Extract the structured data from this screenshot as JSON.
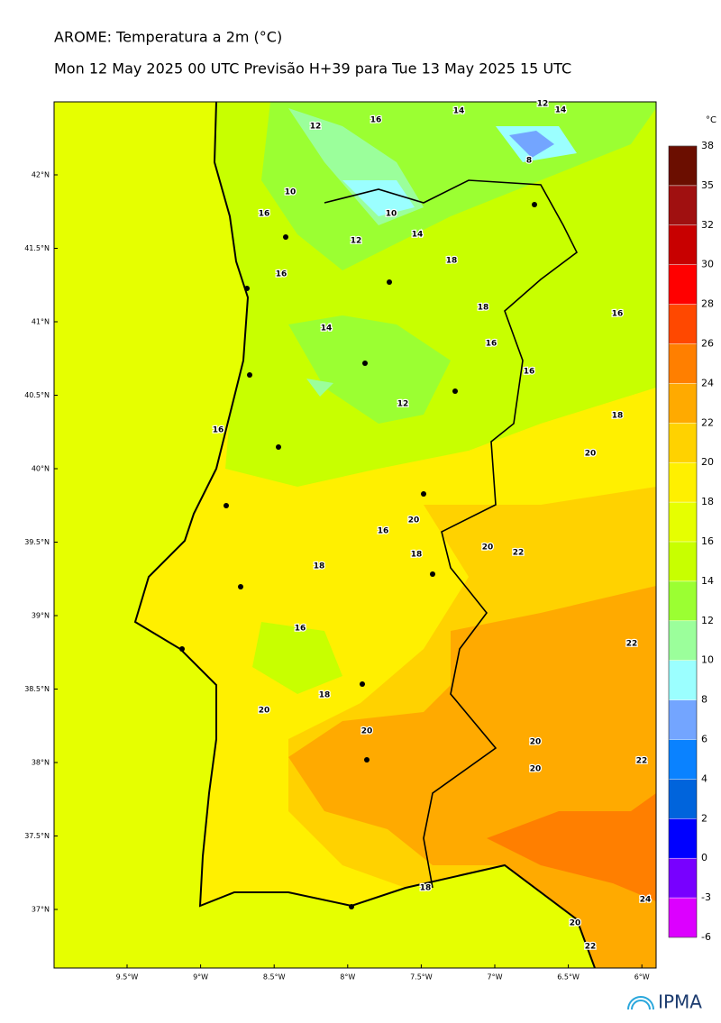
{
  "map": {
    "title": "AROME: Temperatura a 2m (°C)",
    "subtitle": "Mon 12 May 2025 00 UTC Previsão H+39 para Tue 13 May 2025 15 UTC",
    "colorbar": {
      "unit": "°C",
      "levels": [
        -6,
        -3,
        0,
        2,
        4,
        6,
        8,
        10,
        12,
        14,
        16,
        18,
        20,
        22,
        24,
        26,
        28,
        30,
        32,
        35,
        38
      ],
      "colors": [
        "#dc00ff",
        "#7800ff",
        "#0000ff",
        "#0064dc",
        "#0a82ff",
        "#73a5ff",
        "#9bffff",
        "#9bff9b",
        "#9bff32",
        "#c8ff00",
        "#e6ff00",
        "#fff000",
        "#ffd200",
        "#ffaa00",
        "#ff7f00",
        "#ff4800",
        "#ff0000",
        "#c80000",
        "#a01010",
        "#6b0e00"
      ]
    },
    "lat_labels": [
      "42°N",
      "41.5°N",
      "41°N",
      "40.5°N",
      "40°N",
      "39.5°N",
      "39°N",
      "38.5°N",
      "38°N",
      "37.5°N",
      "37°N"
    ],
    "lon_labels": [
      "9.5°W",
      "9°W",
      "8.5°W",
      "8°W",
      "7.5°W",
      "7°W",
      "6.5°W",
      "6°W"
    ],
    "contour_labels": [
      12,
      16,
      14,
      12,
      10,
      8,
      14,
      16,
      10,
      12,
      14,
      16,
      18,
      18,
      16,
      14,
      16,
      16,
      12,
      18,
      16,
      20,
      20,
      16,
      18,
      20,
      22,
      18,
      16,
      22,
      18,
      20,
      20,
      20,
      20,
      22,
      18,
      20,
      24,
      22
    ],
    "logo": "IPMA"
  }
}
